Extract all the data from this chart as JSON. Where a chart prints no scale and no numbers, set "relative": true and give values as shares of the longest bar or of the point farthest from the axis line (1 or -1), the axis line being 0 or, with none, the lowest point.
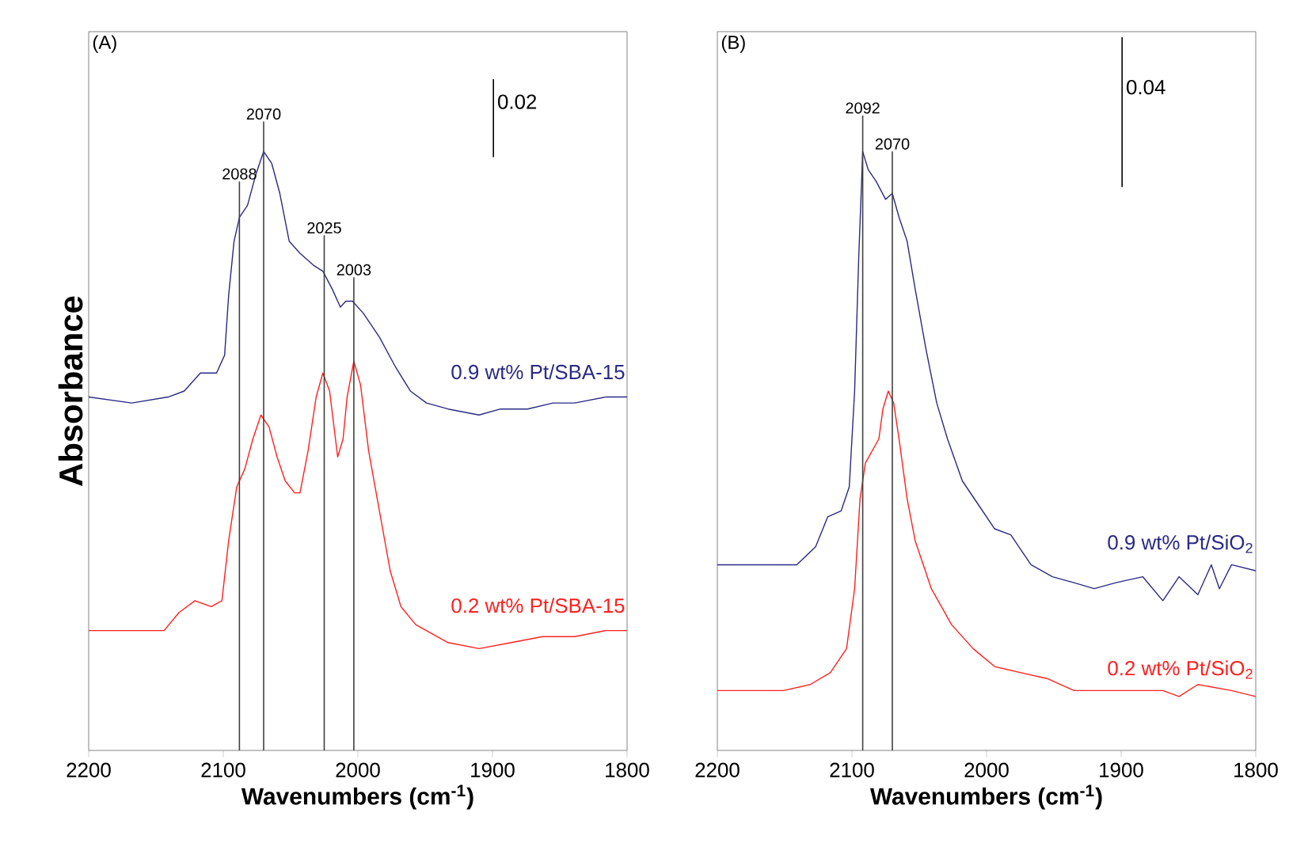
{
  "chart_data": [
    {
      "type": "line",
      "relative": true,
      "xlabel": "Wavenumbers (cm$^{-1}$)",
      "ylabel": "Absorbance",
      "xlim": [
        2200,
        1800
      ],
      "xticks": [
        2200,
        2100,
        2000,
        1900,
        1800
      ],
      "annotations": [
        "(A)",
        "0.02"
      ],
      "ref_lines": [
        {
          "axis": "x",
          "value": 2088,
          "label": "2088"
        },
        {
          "axis": "x",
          "value": 2070,
          "label": "2070"
        },
        {
          "axis": "x",
          "value": 2025,
          "label": "2025"
        },
        {
          "axis": "x",
          "value": 2003,
          "label": "2003"
        }
      ],
      "series": [
        {
          "name": "0.9 wt% Pt/SBA-15",
          "color": "#2a2a86",
          "x": [
            2200,
            2168,
            2141,
            2129,
            2117,
            2105,
            2099,
            2096,
            2092,
            2088,
            2082,
            2076,
            2070,
            2064,
            2058,
            2051,
            2043,
            2033,
            2026,
            2019,
            2013,
            2009,
            2004,
            1996,
            1984,
            1972,
            1961,
            1949,
            1933,
            1910,
            1894,
            1874,
            1855,
            1839,
            1816,
            1800
          ],
          "values": [
            0.59,
            0.58,
            0.59,
            0.6,
            0.63,
            0.63,
            0.66,
            0.76,
            0.85,
            0.89,
            0.91,
            0.96,
            1.0,
            0.98,
            0.93,
            0.85,
            0.83,
            0.81,
            0.8,
            0.77,
            0.74,
            0.75,
            0.75,
            0.73,
            0.69,
            0.64,
            0.6,
            0.58,
            0.57,
            0.56,
            0.57,
            0.57,
            0.58,
            0.58,
            0.59,
            0.59
          ]
        },
        {
          "name": "0.2 wt% Pt/SBA-15",
          "color": "#ff2020",
          "x": [
            2200,
            2168,
            2144,
            2133,
            2121,
            2109,
            2101,
            2096,
            2090,
            2084,
            2078,
            2072,
            2066,
            2060,
            2054,
            2047,
            2043,
            2037,
            2031,
            2026,
            2021,
            2015,
            2011,
            2008,
            2003,
            1998,
            1992,
            1984,
            1976,
            1968,
            1957,
            1933,
            1910,
            1886,
            1863,
            1839,
            1816,
            1800
          ],
          "values": [
            0.2,
            0.2,
            0.2,
            0.23,
            0.25,
            0.24,
            0.25,
            0.35,
            0.44,
            0.47,
            0.52,
            0.56,
            0.54,
            0.49,
            0.45,
            0.43,
            0.43,
            0.5,
            0.59,
            0.63,
            0.6,
            0.49,
            0.52,
            0.59,
            0.65,
            0.61,
            0.5,
            0.4,
            0.3,
            0.24,
            0.21,
            0.18,
            0.17,
            0.18,
            0.19,
            0.19,
            0.2,
            0.2
          ]
        }
      ]
    },
    {
      "type": "line",
      "relative": true,
      "xlabel": "Wavenumbers (cm$^{-1}$)",
      "xlim": [
        2200,
        1800
      ],
      "xticks": [
        2200,
        2100,
        2000,
        1900,
        1800
      ],
      "annotations": [
        "(B)",
        "0.04"
      ],
      "ref_lines": [
        {
          "axis": "x",
          "value": 2092,
          "label": "2092"
        },
        {
          "axis": "x",
          "value": 2070,
          "label": "2070"
        }
      ],
      "series": [
        {
          "name": "0.9 wt% Pt/SiO$_{2}$",
          "color": "#2a2a86",
          "x": [
            2200,
            2171,
            2141,
            2127,
            2118,
            2108,
            2102,
            2098,
            2095,
            2092,
            2088,
            2082,
            2075,
            2070,
            2065,
            2059,
            2053,
            2045,
            2037,
            2029,
            2018,
            2006,
            1994,
            1982,
            1967,
            1951,
            1935,
            1920,
            1904,
            1884,
            1869,
            1857,
            1843,
            1833,
            1827,
            1818,
            1800
          ],
          "values": [
            0.31,
            0.31,
            0.31,
            0.34,
            0.39,
            0.4,
            0.44,
            0.6,
            0.82,
            1.0,
            0.97,
            0.95,
            0.92,
            0.93,
            0.89,
            0.85,
            0.77,
            0.67,
            0.58,
            0.52,
            0.45,
            0.41,
            0.37,
            0.36,
            0.31,
            0.29,
            0.28,
            0.27,
            0.28,
            0.29,
            0.25,
            0.29,
            0.26,
            0.31,
            0.27,
            0.31,
            0.3
          ]
        },
        {
          "name": "0.2 wt% Pt/SiO$_{2}$",
          "color": "#ff2020",
          "x": [
            2200,
            2151,
            2131,
            2116,
            2104,
            2098,
            2094,
            2090,
            2085,
            2080,
            2077,
            2073,
            2069,
            2065,
            2059,
            2053,
            2041,
            2026,
            2010,
            1994,
            1975,
            1955,
            1935,
            1896,
            1869,
            1857,
            1843,
            1818,
            1800
          ],
          "values": [
            0.1,
            0.1,
            0.11,
            0.13,
            0.17,
            0.27,
            0.42,
            0.48,
            0.5,
            0.52,
            0.57,
            0.6,
            0.58,
            0.52,
            0.42,
            0.35,
            0.27,
            0.21,
            0.17,
            0.14,
            0.13,
            0.12,
            0.1,
            0.1,
            0.1,
            0.09,
            0.11,
            0.1,
            0.09
          ]
        }
      ]
    }
  ]
}
